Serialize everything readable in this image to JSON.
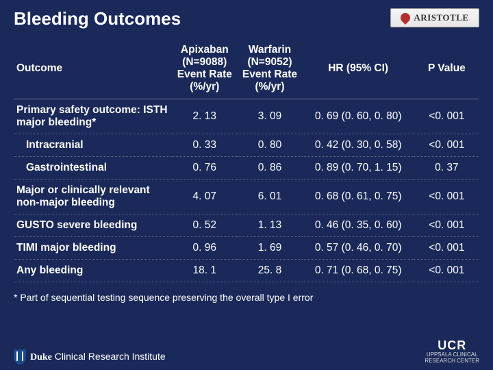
{
  "title": "Bleeding Outcomes",
  "logo_top": "ARISTOTLE",
  "columns": {
    "outcome": "Outcome",
    "apixaban": "Apixaban\n(N=9088)\nEvent Rate\n(%/yr)",
    "warfarin": "Warfarin\n(N=9052)\nEvent Rate\n(%/yr)",
    "hr": "HR (95% CI)",
    "pval": "P Value"
  },
  "rows": [
    {
      "label": "Primary safety outcome: ISTH major bleeding*",
      "indent": false,
      "apix": "2. 13",
      "warf": "3. 09",
      "hr": "0. 69 (0. 60, 0. 80)",
      "p": "<0. 001"
    },
    {
      "label": "Intracranial",
      "indent": true,
      "apix": "0. 33",
      "warf": "0. 80",
      "hr": "0. 42 (0. 30, 0. 58)",
      "p": "<0. 001"
    },
    {
      "label": "Gastrointestinal",
      "indent": true,
      "apix": "0. 76",
      "warf": "0. 86",
      "hr": "0. 89 (0. 70, 1. 15)",
      "p": "0. 37"
    },
    {
      "label": "Major or clinically relevant non-major bleeding",
      "indent": false,
      "apix": "4. 07",
      "warf": "6. 01",
      "hr": "0. 68 (0. 61, 0. 75)",
      "p": "<0. 001"
    },
    {
      "label": "GUSTO severe bleeding",
      "indent": false,
      "apix": "0. 52",
      "warf": "1. 13",
      "hr": "0. 46 (0. 35, 0. 60)",
      "p": "<0. 001"
    },
    {
      "label": "TIMI major bleeding",
      "indent": false,
      "apix": "0. 96",
      "warf": "1. 69",
      "hr": "0. 57 (0. 46, 0. 70)",
      "p": "<0. 001"
    },
    {
      "label": "Any bleeding",
      "indent": false,
      "apix": "18. 1",
      "warf": "25. 8",
      "hr": "0. 71 (0. 68, 0. 75)",
      "p": "<0. 001"
    }
  ],
  "footnote": "* Part of sequential testing sequence preserving the overall type I error",
  "duke": {
    "bold": "Duke",
    "rest": " Clinical Research Institute"
  },
  "ucr": {
    "big": "UCR",
    "small1": "UPPSALA CLINICAL",
    "small2": "RESEARCH CENTER"
  },
  "colors": {
    "background": "#1a2959",
    "text": "#ffffff",
    "row_border": "#5b6688",
    "header_border": "#6b7599"
  },
  "column_widths_pct": [
    34,
    14,
    14,
    24,
    14
  ]
}
